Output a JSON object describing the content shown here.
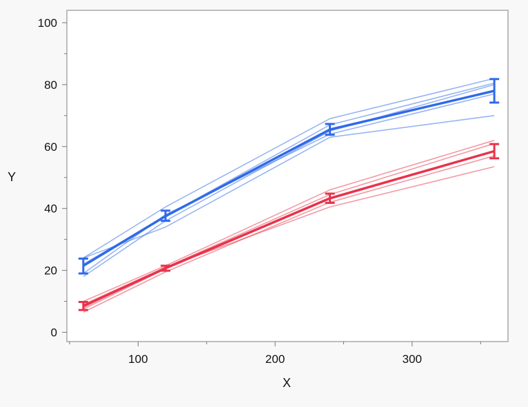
{
  "chart_data": {
    "type": "line",
    "xlabel": "X",
    "ylabel": "Y",
    "xlim": [
      48,
      370
    ],
    "ylim": [
      -3,
      104
    ],
    "x_ticks": [
      100,
      200,
      300
    ],
    "y_ticks": [
      0,
      20,
      40,
      60,
      80,
      100
    ],
    "grid": false,
    "legend": "none",
    "x": [
      60,
      120,
      240,
      360
    ],
    "series": [
      {
        "group": "blue",
        "color": "#2f6ae8",
        "mean": [
          21.5,
          37.5,
          65.5,
          78
        ],
        "error_low": [
          19,
          36,
          63.8,
          74.2
        ],
        "error_high": [
          23.8,
          39.3,
          67.3,
          81.8
        ],
        "individuals": [
          [
            24,
            40.5,
            69,
            82
          ],
          [
            22,
            37.5,
            67,
            80.5
          ],
          [
            18,
            36,
            65,
            80
          ],
          [
            19,
            38,
            64,
            77
          ],
          [
            24,
            34,
            63,
            70
          ]
        ]
      },
      {
        "group": "red",
        "color": "#e8334a",
        "mean": [
          8.5,
          20.7,
          43.3,
          58.5
        ],
        "error_low": [
          7.2,
          19.9,
          41.8,
          56.2
        ],
        "error_high": [
          9.8,
          21.5,
          44.8,
          60.8
        ],
        "individuals": [
          [
            10,
            21.5,
            46,
            62
          ],
          [
            9,
            21,
            44.5,
            61
          ],
          [
            7.5,
            20.5,
            43,
            58.5
          ],
          [
            6.5,
            19.5,
            42,
            57
          ],
          [
            8,
            21,
            40.5,
            53.5
          ]
        ]
      }
    ]
  }
}
